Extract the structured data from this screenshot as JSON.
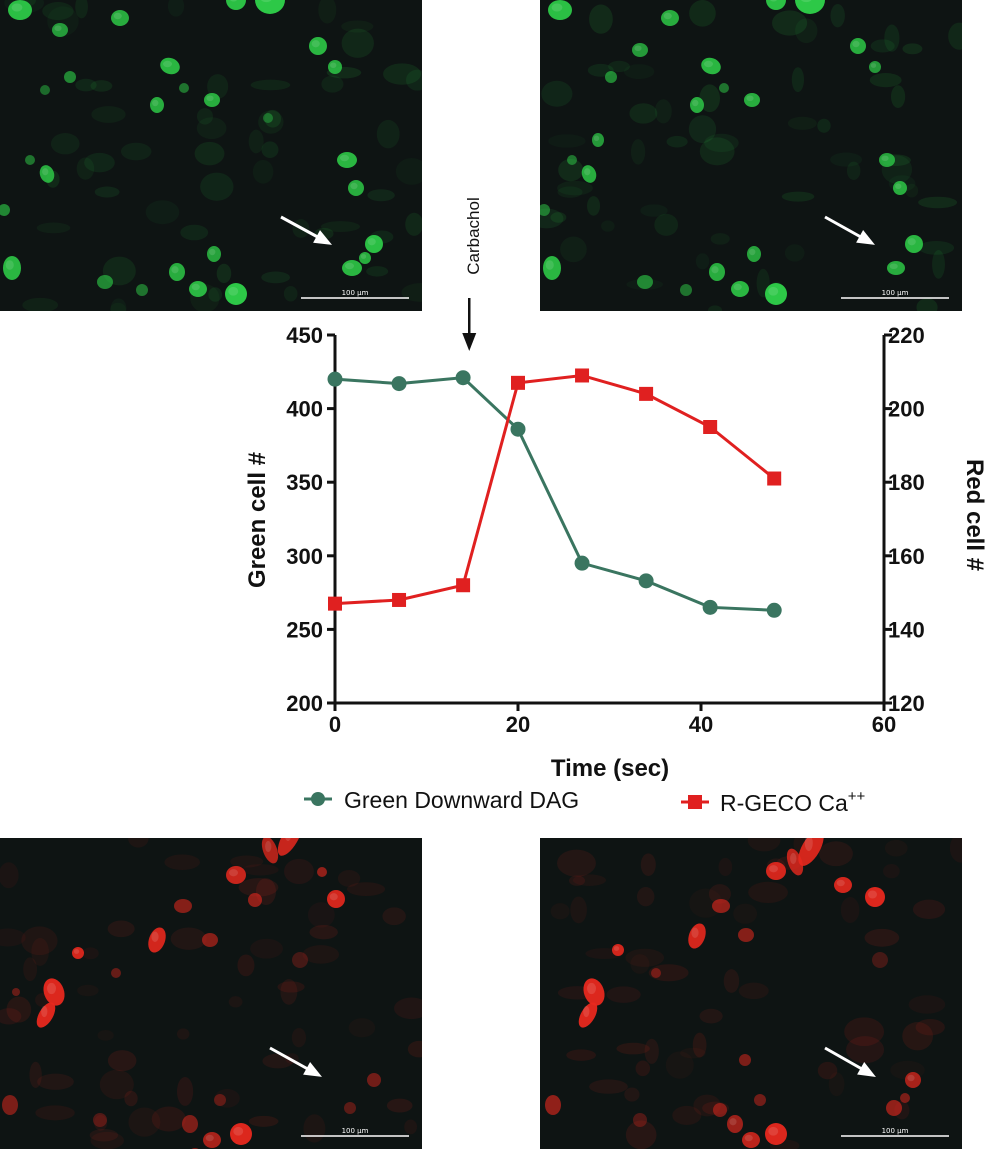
{
  "panels": {
    "top_left": {
      "scale_label": "100 µm",
      "channel": "green"
    },
    "top_right": {
      "scale_label": "100 µm",
      "channel": "green"
    },
    "bottom_left": {
      "scale_label": "100 µm",
      "channel": "red"
    },
    "bottom_right": {
      "scale_label": "100 µm",
      "channel": "red"
    }
  },
  "colors": {
    "green_cells": "#2fd24a",
    "red_cells": "#e8281e",
    "panel_bg": "#0e1413",
    "green_series": "#3a7560",
    "red_series": "#e02020",
    "axis": "#111111"
  },
  "annotation": {
    "label": "Carbachol",
    "x": 15
  },
  "chart_data": {
    "type": "line",
    "title": "",
    "xlabel": "Time (sec)",
    "ylabel_left": "Green cell #",
    "ylabel_right": "Red cell #",
    "xlim": [
      0,
      60
    ],
    "ylim_left": [
      200,
      450
    ],
    "ylim_right": [
      120,
      220
    ],
    "x_ticks": [
      "0",
      "20",
      "40",
      "60"
    ],
    "y_ticks_left": [
      "200",
      "250",
      "300",
      "350",
      "400",
      "450"
    ],
    "y_ticks_right": [
      "120",
      "140",
      "160",
      "180",
      "200",
      "220"
    ],
    "grid": false,
    "legend_position": "bottom",
    "series": [
      {
        "name": "Green Downward DAG",
        "axis": "left",
        "marker": "circle",
        "color": "#3a7560",
        "x": [
          0,
          7,
          14,
          20,
          27,
          34,
          41,
          48
        ],
        "values": [
          420,
          417,
          421,
          386,
          295,
          283,
          265,
          263
        ]
      },
      {
        "name": "R-GECO Ca",
        "name_superscript": "++",
        "axis": "right",
        "marker": "square",
        "color": "#e02020",
        "x": [
          0,
          7,
          14,
          20,
          27,
          34,
          41,
          48
        ],
        "values": [
          147,
          148,
          152,
          207,
          209,
          204,
          195,
          181
        ]
      }
    ]
  }
}
